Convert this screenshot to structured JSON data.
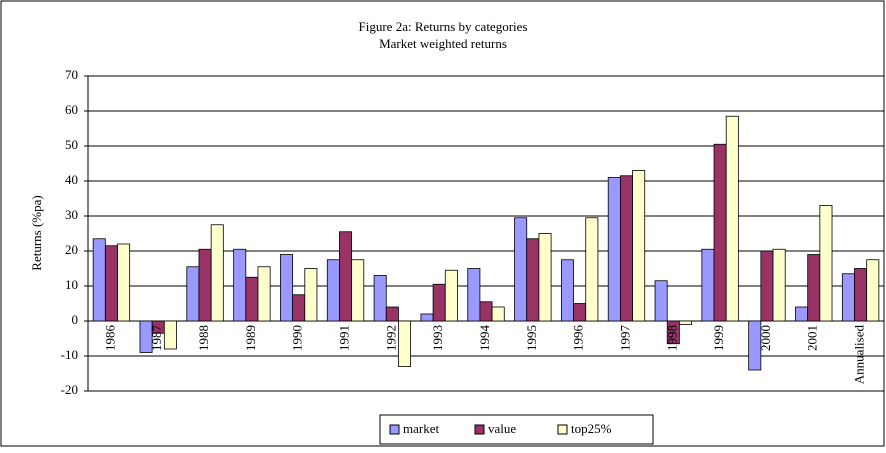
{
  "chart_data": {
    "type": "bar",
    "title": "Figure 2a: Returns by categories",
    "subtitle": "Market weighted returns",
    "y_label": "Returns (%pa)",
    "categories": [
      "1986",
      "1987",
      "1988",
      "1989",
      "1990",
      "1991",
      "1992",
      "1993",
      "1994",
      "1995",
      "1996",
      "1997",
      "1998",
      "1999",
      "2000",
      "2001",
      "Annualised"
    ],
    "series": [
      {
        "name": "market",
        "color": "#9999ff",
        "values": [
          23.5,
          -9,
          15.5,
          20.5,
          19,
          17.5,
          13,
          2,
          15,
          29.5,
          17.5,
          41,
          11.5,
          20.5,
          -14,
          4,
          13.5
        ]
      },
      {
        "name": "value",
        "color": "#993366",
        "values": [
          21.5,
          -3.5,
          20.5,
          12.5,
          7.5,
          25.5,
          4,
          10.5,
          5.5,
          23.5,
          5,
          41.5,
          -6.5,
          50.5,
          20,
          19,
          15
        ]
      },
      {
        "name": "top25%",
        "color": "#ffffcc",
        "values": [
          22,
          -8,
          27.5,
          15.5,
          15,
          17.5,
          -13,
          14.5,
          4,
          25,
          29.5,
          43,
          -1,
          58.5,
          20.5,
          33,
          17.5
        ]
      }
    ],
    "ylim": [
      -20,
      70
    ],
    "yticks": [
      -20,
      -10,
      0,
      10,
      20,
      30,
      40,
      50,
      60,
      70
    ],
    "grid": true,
    "legend": "bottom"
  }
}
